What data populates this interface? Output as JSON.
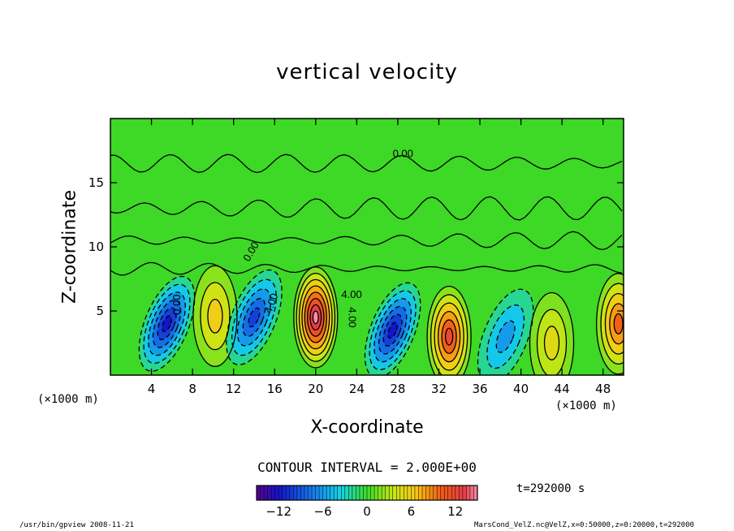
{
  "chart_data": {
    "type": "heatmap",
    "title": "vertical velocity",
    "xlabel": "X-coordinate",
    "ylabel": "Z-coordinate",
    "x_unit": "(×1000 m)",
    "y_unit": "(×1000 m)",
    "xlim": [
      0,
      50
    ],
    "ylim": [
      0,
      20
    ],
    "x_ticks": [
      "4",
      "8",
      "12",
      "16",
      "20",
      "24",
      "28",
      "32",
      "36",
      "40",
      "44",
      "48"
    ],
    "y_ticks": [
      "5",
      "10",
      "15"
    ],
    "contour_interval_label": "CONTOUR INTERVAL = 2.000E+00",
    "time_label": "t=292000 s",
    "colorbar": {
      "min": -15,
      "max": 15,
      "ticks": [
        "−12",
        "−6",
        "0",
        "6",
        "12"
      ]
    },
    "contour_labels": [
      "0.00",
      "4.00",
      "4.00",
      "4.00",
      "0.00",
      "0.00"
    ],
    "cells": [
      {
        "x": 5.5,
        "z": 4.0,
        "w": -12
      },
      {
        "x": 10.2,
        "z": 4.6,
        "w": 6
      },
      {
        "x": 14.0,
        "z": 4.5,
        "w": -10
      },
      {
        "x": 20.0,
        "z": 4.5,
        "w": 15
      },
      {
        "x": 27.5,
        "z": 3.5,
        "w": -12
      },
      {
        "x": 33.0,
        "z": 3.0,
        "w": 12
      },
      {
        "x": 38.5,
        "z": 3.0,
        "w": -6
      },
      {
        "x": 43.0,
        "z": 2.5,
        "w": 5
      },
      {
        "x": 49.5,
        "z": 4.0,
        "w": 10
      }
    ]
  },
  "footer": {
    "left": "/usr/bin/gpview  2008-11-21",
    "right": "MarsCond_VelZ.nc@VelZ,x=0:50000,z=0:20000,t=292000"
  }
}
